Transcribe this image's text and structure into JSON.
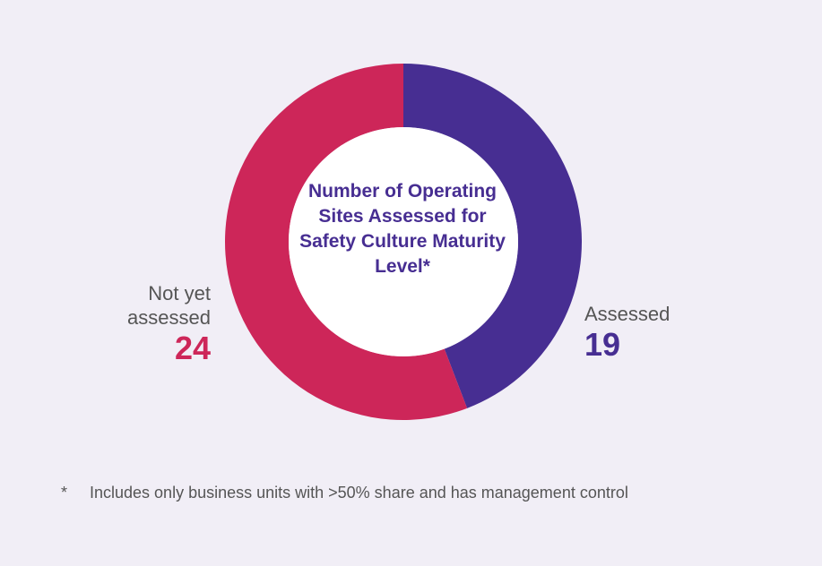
{
  "chart_data": {
    "type": "pie",
    "donut": true,
    "title": "Number of Operating Sites Assessed for Safety Culture Maturity Level*",
    "slices": [
      {
        "label": "Assessed",
        "value": 19,
        "color": "#472e92"
      },
      {
        "label": "Not yet assessed",
        "value": 24,
        "color": "#cd2659"
      }
    ],
    "footnote": {
      "marker": "*",
      "text": "Includes only business units with >50% share and has management control"
    }
  },
  "labels": {
    "left": {
      "text": "Not yet\nassessed",
      "value": "24"
    },
    "right": {
      "text": "Assessed",
      "value": "19"
    }
  }
}
